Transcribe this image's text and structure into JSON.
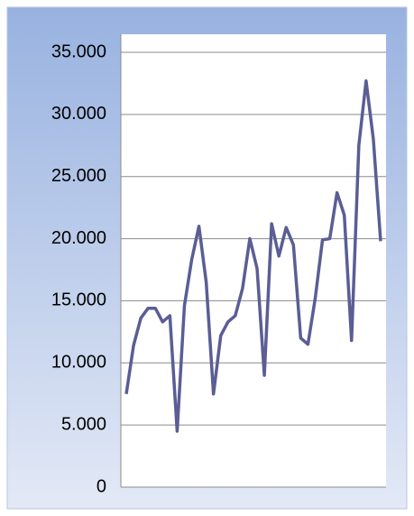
{
  "chart_data": {
    "type": "line",
    "categories": [
      null,
      null,
      null,
      null,
      null,
      null,
      null,
      null,
      null,
      null,
      null,
      null,
      null,
      null,
      null,
      null,
      null,
      null,
      null,
      null,
      null,
      null,
      null,
      null,
      null,
      null,
      null,
      null,
      null,
      null,
      null,
      null,
      null,
      null,
      null,
      null
    ],
    "series": [
      {
        "color": "#5b5d95",
        "values": [
          7500,
          11400,
          13600,
          14400,
          14400,
          13300,
          13800,
          4500,
          14600,
          18300,
          21000,
          16500,
          7500,
          12200,
          13300,
          13800,
          16000,
          20000,
          17600,
          9000,
          21200,
          18600,
          20900,
          19500,
          12000,
          11500,
          15200,
          19900,
          20000,
          23700,
          21900,
          11800,
          27500,
          32700,
          28000,
          19800
        ]
      }
    ],
    "ylim": [
      0,
      35000
    ],
    "yticks": [
      0,
      {
        "value": 5000,
        "label": "5.000"
      },
      {
        "value": 10000,
        "label": "10.000"
      },
      {
        "value": 15000,
        "label": "15.000"
      },
      {
        "value": 20000,
        "label": "20.000"
      },
      {
        "value": 25000,
        "label": "25.000"
      },
      {
        "value": 30000,
        "label": "30.000"
      },
      {
        "value": 35000,
        "label": "35.000"
      }
    ],
    "grid": true
  }
}
